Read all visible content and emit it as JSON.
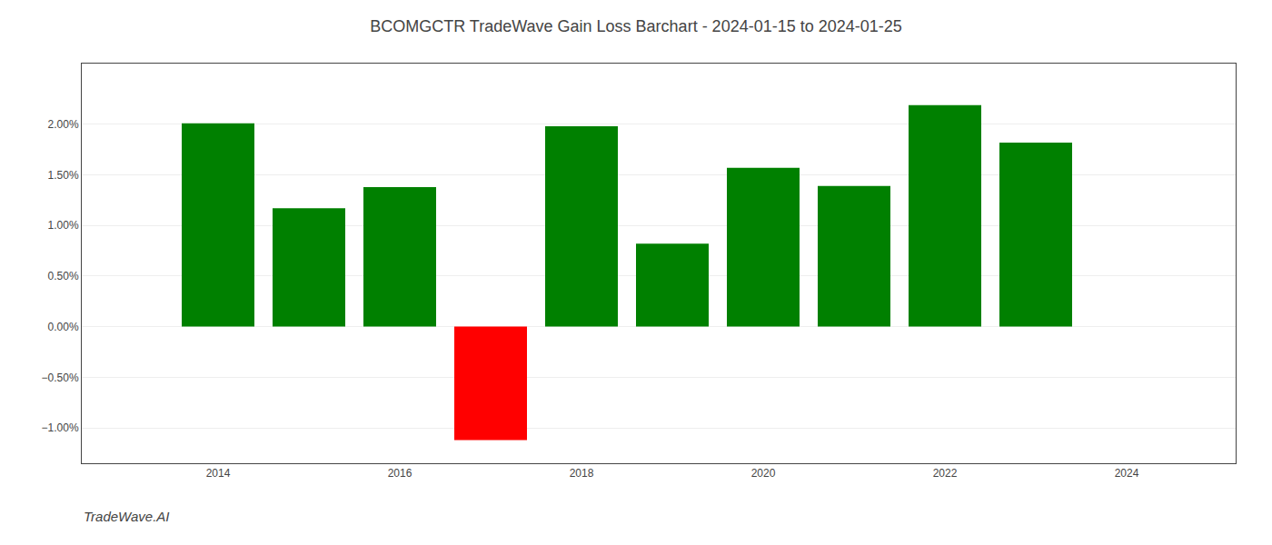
{
  "chart_data": {
    "type": "bar",
    "title": "BCOMGCTR TradeWave Gain Loss Barchart - 2024-01-15 to 2024-01-25",
    "annotations": [
      "TradeWave.AI"
    ],
    "x": [
      2014,
      2015,
      2016,
      2017,
      2018,
      2019,
      2020,
      2021,
      2022,
      2023
    ],
    "values": [
      0.0201,
      0.0117,
      0.0138,
      -0.0112,
      0.0198,
      0.0082,
      0.0157,
      0.0139,
      0.0219,
      0.0182
    ],
    "colors": [
      "#008000",
      "#008000",
      "#008000",
      "#ff0000",
      "#008000",
      "#008000",
      "#008000",
      "#008000",
      "#008000",
      "#008000"
    ],
    "xlim": [
      2012.5,
      2025.2
    ],
    "xticks": [
      2014,
      2016,
      2018,
      2020,
      2022,
      2024
    ],
    "ylim": [
      -0.0135,
      0.026
    ],
    "yticks": [
      {
        "value": -0.01,
        "label": "−1.00%"
      },
      {
        "value": -0.005,
        "label": "−0.50%"
      },
      {
        "value": 0.0,
        "label": "0.00%"
      },
      {
        "value": 0.005,
        "label": "0.50%"
      },
      {
        "value": 0.01,
        "label": "1.00%"
      },
      {
        "value": 0.015,
        "label": "1.50%"
      },
      {
        "value": 0.02,
        "label": "2.00%"
      }
    ],
    "grid": true
  }
}
